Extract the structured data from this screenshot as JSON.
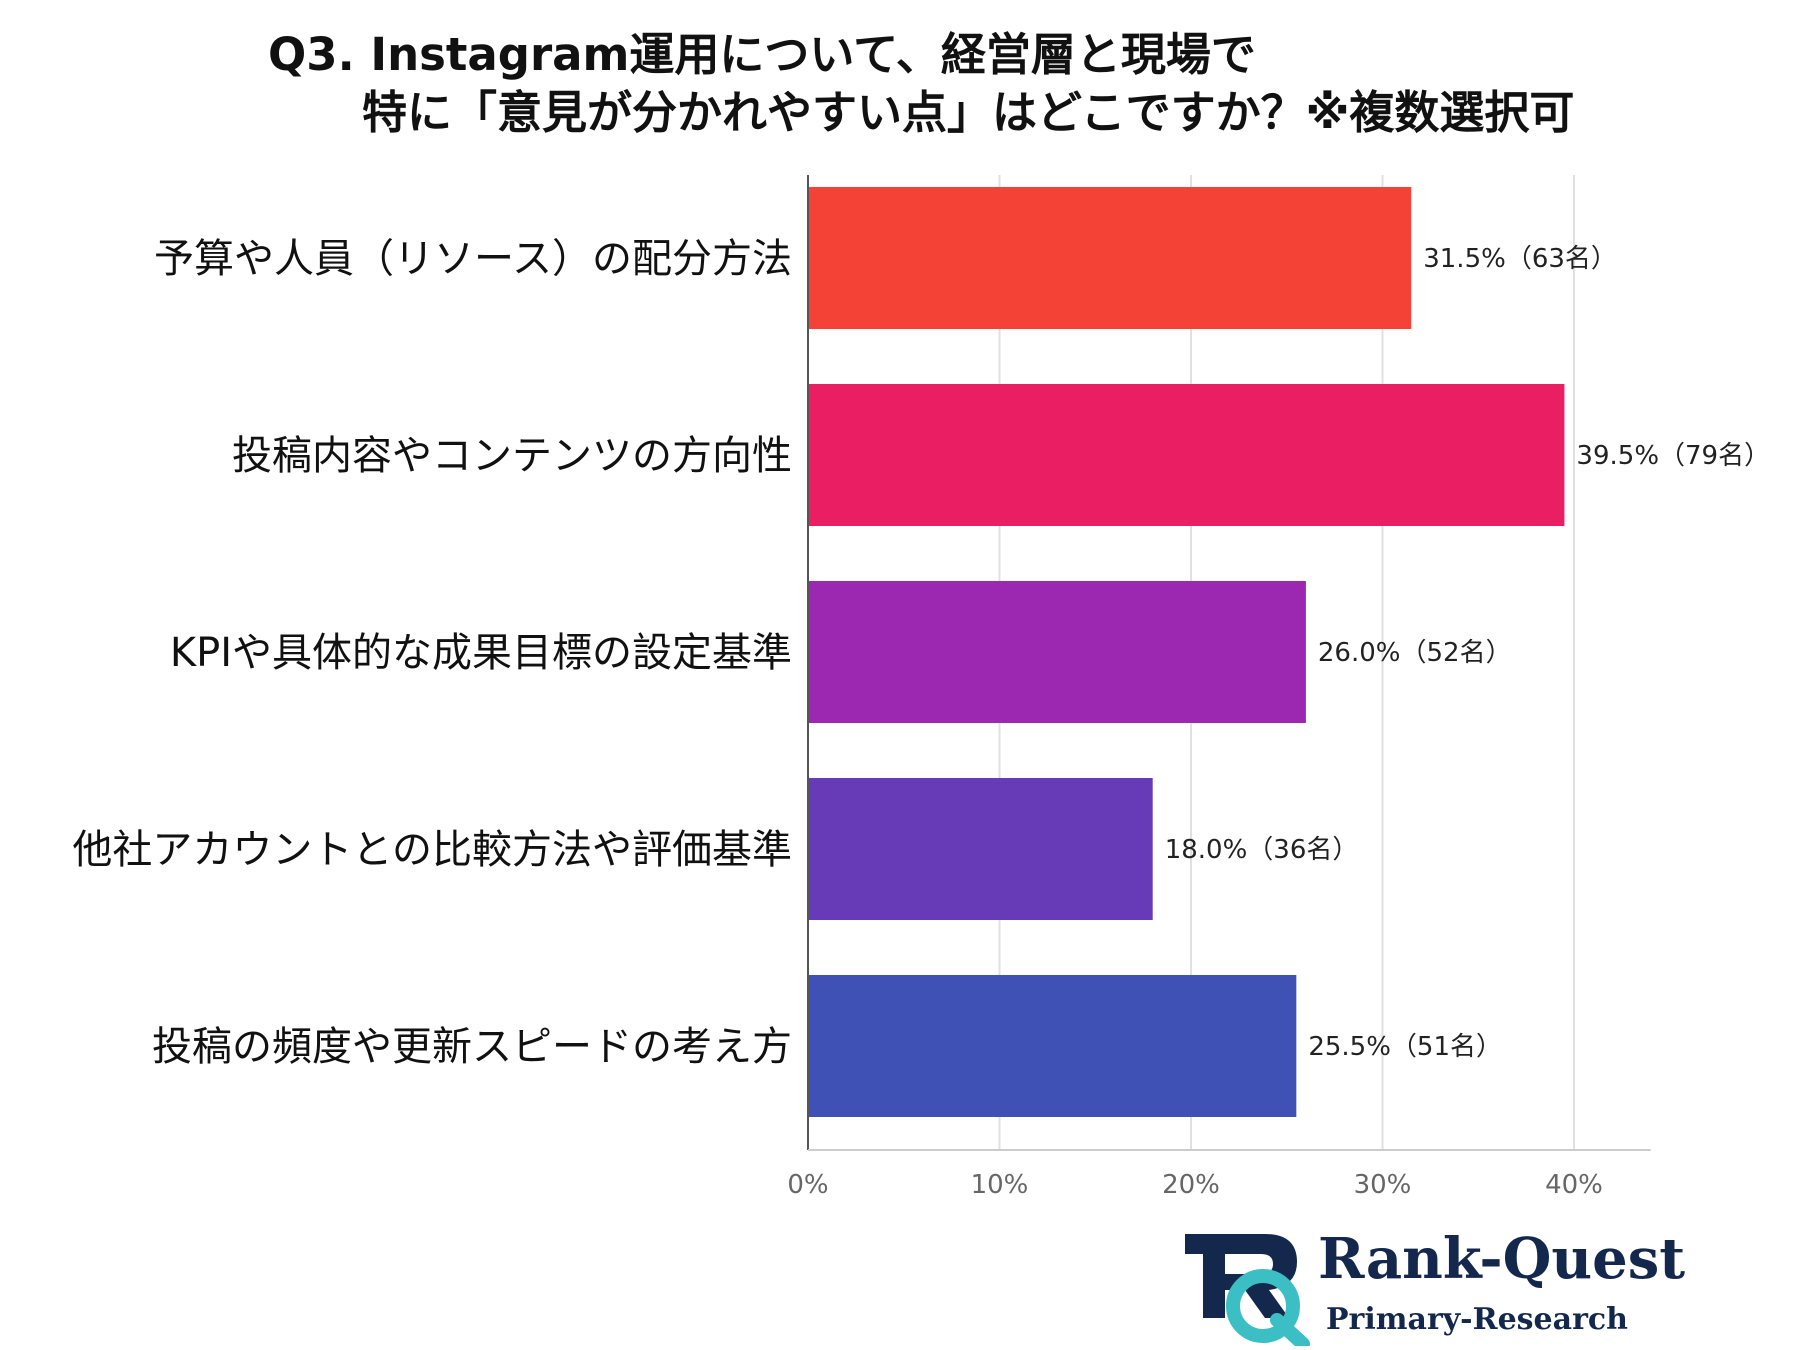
{
  "title": {
    "line1": "Q3. Instagram運用について、経営層と現場で",
    "line2": "特に「意見が分かれやすい点」はどこですか？※複数選択可"
  },
  "chart_data": {
    "type": "bar",
    "orientation": "horizontal",
    "categories": [
      "予算や人員（リソース）の配分方法",
      "投稿内容やコンテンツの方向性",
      "KPIや具体的な成果目標の設定基準",
      "他社アカウントとの比較方法や評価基準",
      "投稿の頻度や更新スピードの考え方"
    ],
    "values": [
      31.5,
      39.5,
      26.0,
      18.0,
      25.5
    ],
    "data_labels": [
      "31.5%（63名）",
      "39.5%（79名）",
      "26.0%（52名）",
      "18.0%（36名）",
      "25.5%（51名）"
    ],
    "colors": [
      "#f44336",
      "#e91e63",
      "#9c27b0",
      "#673ab7",
      "#3f51b5"
    ],
    "xlim": [
      0,
      44
    ],
    "xticks": [
      0,
      10,
      20,
      30,
      40
    ],
    "xtick_labels": [
      "0%",
      "10%",
      "20%",
      "30%",
      "40%"
    ],
    "grid": true,
    "legend": "none"
  },
  "logo": {
    "name": "Rank-Quest",
    "sub": "Primary-Research",
    "colors": {
      "navy": "#14284d",
      "teal": "#3bbfc4"
    }
  }
}
